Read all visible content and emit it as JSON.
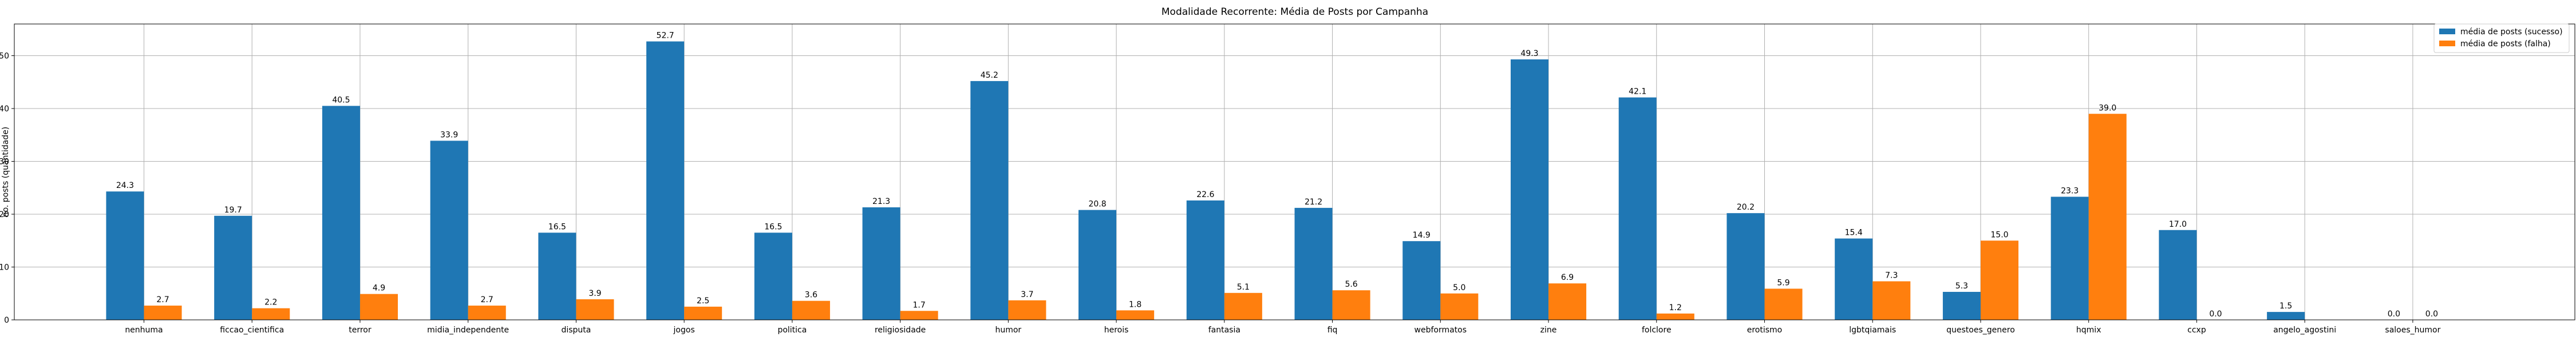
{
  "chart_data": {
    "type": "bar",
    "title": "Modalidade Recorrente: Média de Posts por Campanha",
    "xlabel": "",
    "ylabel": "no. posts (quantidade)",
    "ylim": [
      0,
      56
    ],
    "yticks": [
      0,
      10,
      20,
      30,
      40,
      50
    ],
    "grid": true,
    "legend_position": "top-right",
    "categories": [
      "nenhuma",
      "ficcao_cientifica",
      "terror",
      "midia_independente",
      "disputa",
      "jogos",
      "politica",
      "religiosidade",
      "humor",
      "herois",
      "fantasia",
      "fiq",
      "webformatos",
      "zine",
      "folclore",
      "erotismo",
      "lgbtqiamais",
      "questoes_genero",
      "hqmix",
      "ccxp",
      "angelo_agostini",
      "saloes_humor"
    ],
    "series": [
      {
        "name": "média de posts (sucesso)",
        "color": "#1f77b4",
        "values": [
          24.3,
          19.7,
          40.5,
          33.9,
          16.5,
          52.7,
          16.5,
          21.3,
          45.2,
          20.8,
          22.6,
          21.2,
          14.9,
          49.3,
          42.1,
          20.2,
          15.4,
          5.3,
          23.3,
          17.0,
          1.5,
          0.0
        ],
        "labels": [
          "24.3",
          "19.7",
          "40.5",
          "33.9",
          "16.5",
          "52.7",
          "16.5",
          "21.3",
          "45.2",
          "20.8",
          "22.6",
          "21.2",
          "14.9",
          "49.3",
          "42.1",
          "20.2",
          "15.4",
          "5.3",
          "23.3",
          "17.0",
          "1.5",
          "0.0"
        ]
      },
      {
        "name": "média de posts (falha)",
        "color": "#ff7f0e",
        "values": [
          2.7,
          2.2,
          4.9,
          2.7,
          3.9,
          2.5,
          3.6,
          1.7,
          3.7,
          1.8,
          5.1,
          5.6,
          5.0,
          6.9,
          1.2,
          5.9,
          7.3,
          15.0,
          39.0,
          0.0,
          null,
          0.0
        ],
        "labels": [
          "2.7",
          "2.2",
          "4.9",
          "2.7",
          "3.9",
          "2.5",
          "3.6",
          "1.7",
          "3.7",
          "1.8",
          "5.1",
          "5.6",
          "5.0",
          "6.9",
          "1.2",
          "5.9",
          "7.3",
          "15.0",
          "39.0",
          "0.0",
          "",
          "0.0"
        ]
      }
    ]
  }
}
